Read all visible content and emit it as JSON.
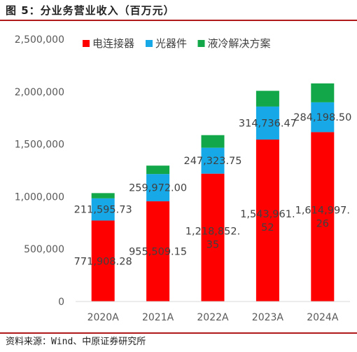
{
  "title": "图 5：分业务营业收入（百万元）",
  "source": "资料来源：Wind、中原证券研究所",
  "colors": {
    "rule": "#b01a1a",
    "axis": "#d9d9d9"
  },
  "chart_data": {
    "type": "bar",
    "stacked": true,
    "categories": [
      "2020A",
      "2021A",
      "2022A",
      "2023A",
      "2024A"
    ],
    "ylim": [
      0,
      2500000
    ],
    "yticks": [
      0,
      500000,
      1000000,
      1500000,
      2000000,
      2500000
    ],
    "ytick_labels": [
      "0",
      "500,000",
      "1,000,000",
      "1,500,000",
      "2,000,000",
      "2,500,000"
    ],
    "legend_position": "top",
    "series": [
      {
        "name": "电连接器",
        "color": "#ff0000",
        "values": [
          771908.28,
          955509.15,
          1218852.35,
          1543961.52,
          1614997.26
        ],
        "labels": [
          "771,908.28",
          "955,509.15",
          "1,218,852.\n35",
          "1,543,961.\n52",
          "1,614,997.\n26"
        ]
      },
      {
        "name": "光器件",
        "color": "#17a8e8",
        "values": [
          211595.73,
          259972.0,
          247323.75,
          314736.47,
          284198.5
        ],
        "labels": [
          "211,595.73",
          "259,972.00",
          "247,323.75",
          "314,736.47",
          "284,198.50"
        ]
      },
      {
        "name": "液冷解决方案",
        "color": "#12a84a",
        "values": [
          50000,
          80000,
          120000,
          150000,
          180000
        ],
        "labels": []
      }
    ]
  }
}
